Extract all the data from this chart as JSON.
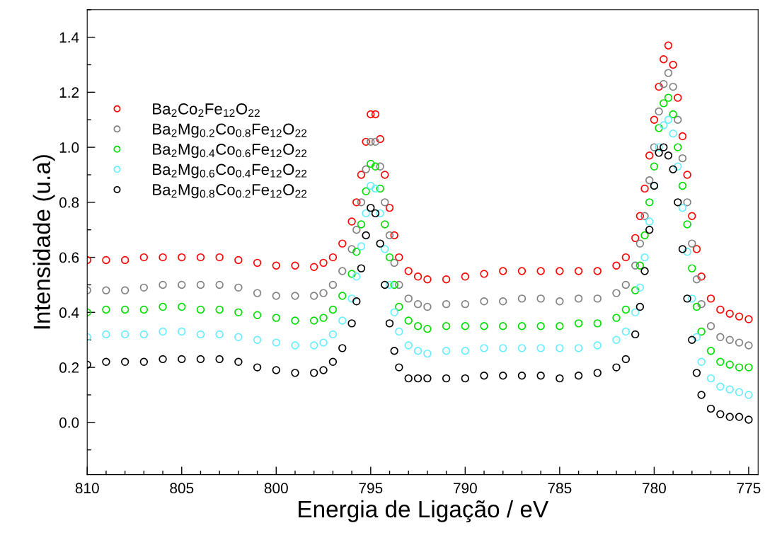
{
  "chart_data": {
    "type": "scatter",
    "xlabel": "Energia de Ligação / eV",
    "ylabel": "Intensidade (u.a)",
    "xlim": [
      810,
      774.5
    ],
    "xticks": [
      810,
      805,
      800,
      795,
      790,
      785,
      780,
      775
    ],
    "ylim": [
      -0.19,
      1.5
    ],
    "yticks": [
      {
        "value": 0,
        "label": "0.0"
      },
      0.2,
      0.4,
      0.6,
      0.8,
      {
        "value": 1,
        "label": "1.0"
      },
      1.2,
      1.4
    ],
    "grid": false,
    "legend": "top left",
    "marker": "circle",
    "x": [
      810,
      809,
      808,
      807,
      806,
      805,
      804,
      803,
      802,
      801,
      800,
      799,
      798,
      797.5,
      797,
      796.5,
      796,
      795.75,
      795.5,
      795.25,
      795,
      794.75,
      794.5,
      794.25,
      794,
      793.75,
      793.5,
      793,
      792.5,
      792,
      791,
      790,
      789,
      788,
      787,
      786,
      785,
      784,
      783,
      782,
      781.5,
      781,
      780.75,
      780.5,
      780.25,
      780,
      779.75,
      779.5,
      779.25,
      779,
      778.75,
      778.5,
      778.25,
      778,
      777.75,
      777.5,
      777,
      776.5,
      776,
      775.5,
      775
    ],
    "series": [
      {
        "name": "Ba$_{2}$Co$_{2}$Fe$_{12}$O$_{22}$",
        "color": "#ff0000",
        "values": [
          0.59,
          0.59,
          0.59,
          0.6,
          0.6,
          0.6,
          0.6,
          0.6,
          0.59,
          0.58,
          0.57,
          0.57,
          0.565,
          0.58,
          0.6,
          0.65,
          0.73,
          0.8,
          0.9,
          1.02,
          1.12,
          1.12,
          1.03,
          0.9,
          0.78,
          0.68,
          0.6,
          0.55,
          0.53,
          0.52,
          0.52,
          0.53,
          0.54,
          0.55,
          0.55,
          0.55,
          0.55,
          0.55,
          0.55,
          0.57,
          0.6,
          0.67,
          0.75,
          0.85,
          0.97,
          1.1,
          1.22,
          1.32,
          1.37,
          1.3,
          1.18,
          1.04,
          0.9,
          0.75,
          0.63,
          0.53,
          0.45,
          0.41,
          0.395,
          0.385,
          0.375
        ]
      },
      {
        "name": "Ba$_{2}$Mg$_{0.2}$Co$_{0.8}$Fe$_{12}$O$_{22}$",
        "color": "#808080",
        "values": [
          0.48,
          0.48,
          0.48,
          0.49,
          0.5,
          0.5,
          0.5,
          0.5,
          0.49,
          0.47,
          0.46,
          0.46,
          0.46,
          0.47,
          0.5,
          0.55,
          0.63,
          0.7,
          0.8,
          0.92,
          1.02,
          1.02,
          0.93,
          0.8,
          0.68,
          0.58,
          0.5,
          0.45,
          0.43,
          0.42,
          0.43,
          0.43,
          0.44,
          0.44,
          0.45,
          0.45,
          0.44,
          0.45,
          0.45,
          0.47,
          0.5,
          0.57,
          0.65,
          0.75,
          0.88,
          1.0,
          1.13,
          1.23,
          1.27,
          1.22,
          1.1,
          0.96,
          0.8,
          0.65,
          0.52,
          0.43,
          0.35,
          0.31,
          0.3,
          0.29,
          0.28
        ]
      },
      {
        "name": "Ba$_{2}$Mg$_{0.4}$Co$_{0.6}$Fe$_{12}$O$_{22}$",
        "color": "#00dd00",
        "values": [
          0.4,
          0.41,
          0.41,
          0.41,
          0.42,
          0.42,
          0.41,
          0.41,
          0.4,
          0.39,
          0.38,
          0.37,
          0.37,
          0.38,
          0.41,
          0.46,
          0.54,
          0.62,
          0.72,
          0.84,
          0.94,
          0.93,
          0.85,
          0.72,
          0.6,
          0.5,
          0.42,
          0.37,
          0.35,
          0.34,
          0.35,
          0.35,
          0.35,
          0.35,
          0.35,
          0.35,
          0.35,
          0.36,
          0.36,
          0.38,
          0.41,
          0.48,
          0.57,
          0.68,
          0.8,
          0.93,
          1.07,
          1.16,
          1.18,
          1.12,
          1.0,
          0.86,
          0.72,
          0.56,
          0.42,
          0.33,
          0.26,
          0.22,
          0.21,
          0.2,
          0.2
        ]
      },
      {
        "name": "Ba$_{2}$Mg$_{0.6}$Co$_{0.4}$Fe$_{12}$O$_{22}$",
        "color": "#66eeff",
        "values": [
          0.31,
          0.32,
          0.32,
          0.32,
          0.33,
          0.33,
          0.32,
          0.32,
          0.31,
          0.3,
          0.29,
          0.28,
          0.28,
          0.29,
          0.32,
          0.37,
          0.45,
          0.53,
          0.64,
          0.76,
          0.86,
          0.85,
          0.76,
          0.63,
          0.5,
          0.4,
          0.33,
          0.28,
          0.26,
          0.25,
          0.26,
          0.26,
          0.27,
          0.27,
          0.27,
          0.27,
          0.27,
          0.27,
          0.28,
          0.3,
          0.33,
          0.4,
          0.49,
          0.6,
          0.73,
          0.86,
          1.0,
          1.08,
          1.1,
          1.05,
          0.93,
          0.78,
          0.62,
          0.45,
          0.31,
          0.22,
          0.16,
          0.13,
          0.12,
          0.11,
          0.1
        ]
      },
      {
        "name": "Ba$_{2}$Mg$_{0.8}$Co$_{0.2}$Fe$_{12}$O$_{22}$",
        "color": "#000000",
        "values": [
          0.21,
          0.22,
          0.22,
          0.22,
          0.23,
          0.23,
          0.23,
          0.23,
          0.22,
          0.2,
          0.19,
          0.18,
          0.18,
          0.19,
          0.22,
          0.27,
          0.36,
          0.44,
          0.56,
          0.68,
          0.78,
          0.76,
          0.65,
          0.5,
          0.36,
          0.26,
          0.2,
          0.16,
          0.16,
          0.16,
          0.16,
          0.16,
          0.17,
          0.17,
          0.17,
          0.17,
          0.16,
          0.17,
          0.18,
          0.2,
          0.23,
          0.32,
          0.42,
          0.55,
          0.7,
          0.86,
          0.98,
          1.0,
          0.97,
          0.92,
          0.8,
          0.63,
          0.45,
          0.3,
          0.18,
          0.1,
          0.05,
          0.03,
          0.02,
          0.02,
          0.01
        ]
      }
    ]
  }
}
